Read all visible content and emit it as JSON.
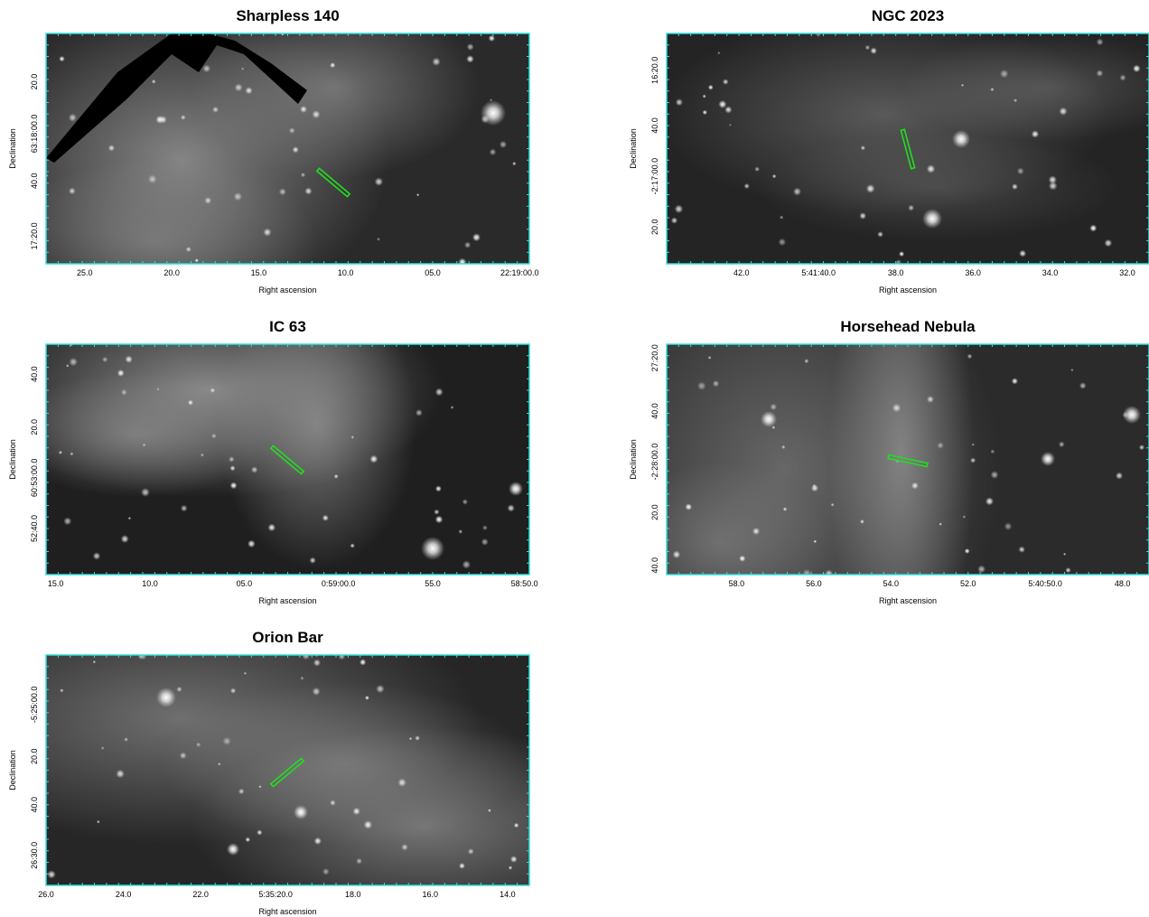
{
  "panels": [
    {
      "title": "Sharpless 140",
      "xlabel": "Right ascension",
      "ylabel": "Declination",
      "xticks": [
        "25.0",
        "20.0",
        "15.0",
        "10.0",
        "05.0",
        "22:19:00.0"
      ],
      "yticks": [
        "20.0",
        "63:18:00.0",
        "40.0",
        "17:20.0"
      ]
    },
    {
      "title": "NGC 2023",
      "xlabel": "Right ascension",
      "ylabel": "Declination",
      "xticks": [
        "42.0",
        "5:41:40.0",
        "38.0",
        "36.0",
        "34.0",
        "32.0"
      ],
      "yticks": [
        "16:20.0",
        "40.0",
        "-2:17:00.0",
        "20.0"
      ]
    },
    {
      "title": "IC 63",
      "xlabel": "Right ascension",
      "ylabel": "Declination",
      "xticks": [
        "15.0",
        "10.0",
        "05.0",
        "0:59:00.0",
        "55.0",
        "58:50.0"
      ],
      "yticks": [
        "40.0",
        "20.0",
        "60:53:00.0",
        "52:40.0"
      ]
    },
    {
      "title": "Horsehead Nebula",
      "xlabel": "Right ascension",
      "ylabel": "Declination",
      "xticks": [
        "58.0",
        "56.0",
        "54.0",
        "52.0",
        "5:40:50.0",
        "48.0"
      ],
      "yticks": [
        "27:20.0",
        "40.0",
        "-2:28:00.0",
        "20.0",
        "40.0"
      ]
    },
    {
      "title": "Orion Bar",
      "xlabel": "Right ascension",
      "ylabel": "Declination",
      "xticks": [
        "26.0",
        "24.0",
        "22.0",
        "5:35:20.0",
        "18.0",
        "16.0",
        "14.0"
      ],
      "yticks": [
        "-5:25:00.0",
        "20.0",
        "40.0",
        "26:30.0"
      ]
    }
  ]
}
